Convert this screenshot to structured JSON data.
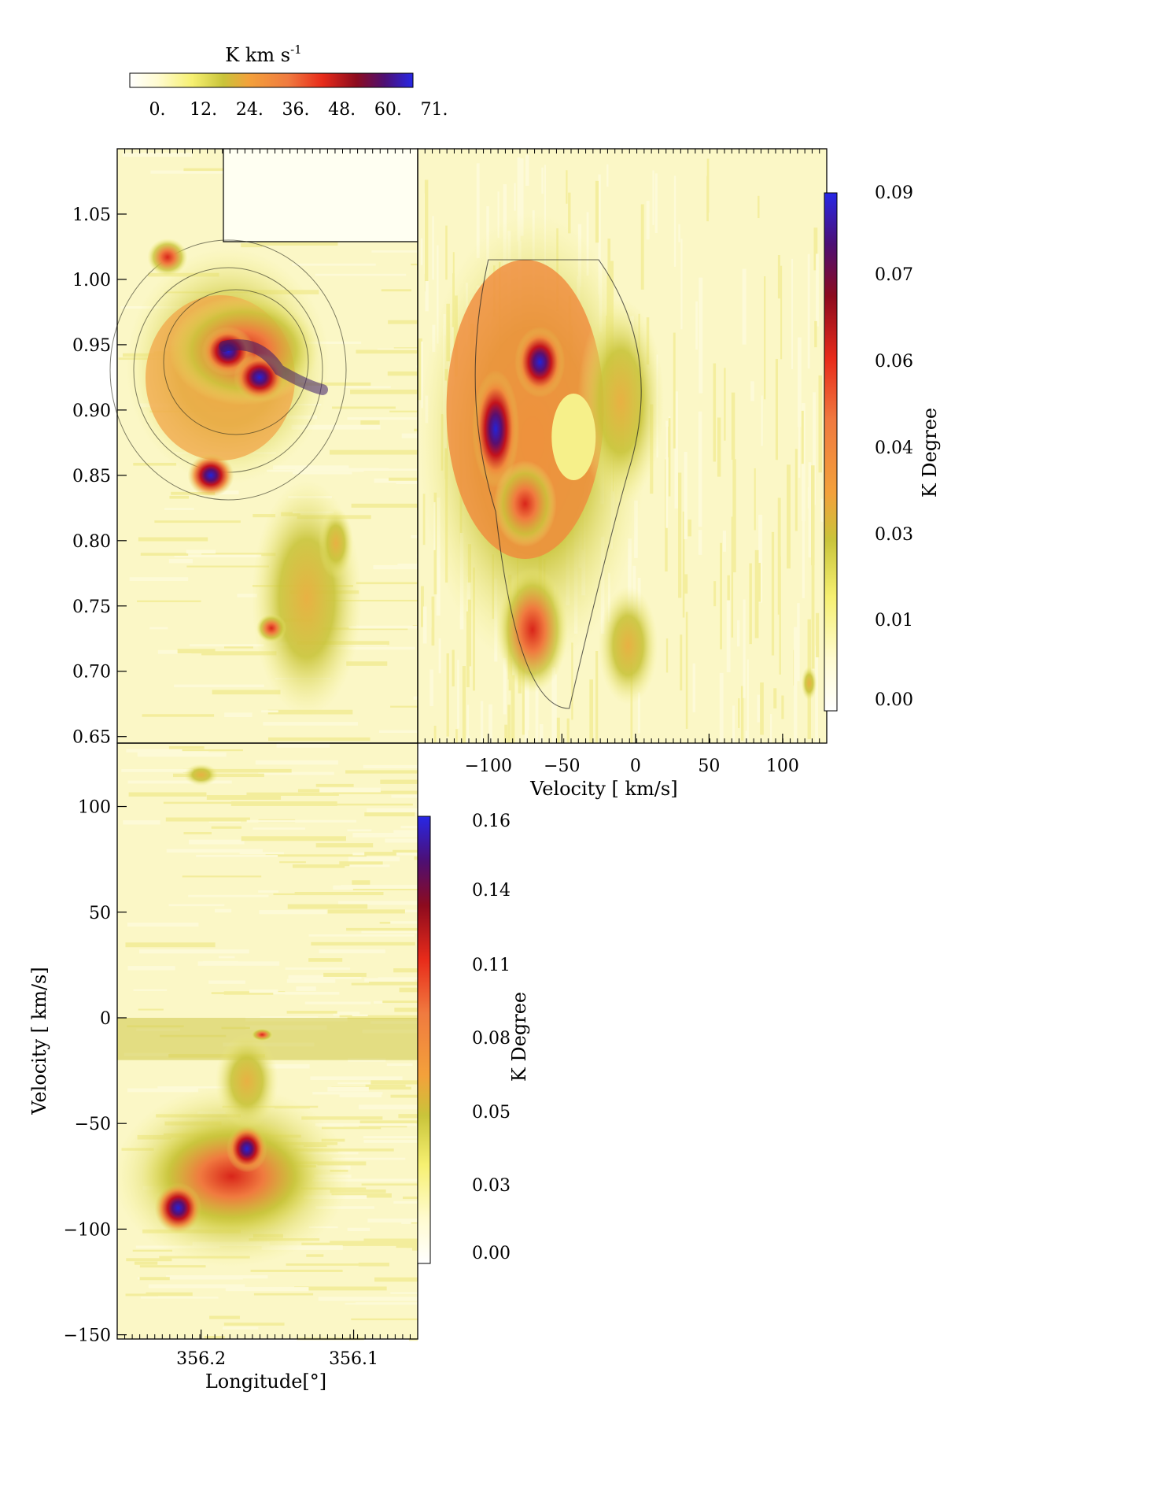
{
  "chart_data": [
    {
      "type": "heatmap",
      "panel": "integrated-intensity map",
      "colorbar": {
        "title": "K km s",
        "title_superscript": "-1",
        "ticks": [
          "0.",
          "12.",
          "24.",
          "36.",
          "48.",
          "60.",
          "71."
        ],
        "range": [
          0,
          71
        ]
      },
      "xlabel": "",
      "ylabel": "",
      "yticks": [
        1.05,
        1.0,
        0.95,
        0.9,
        0.85,
        0.8,
        0.75,
        0.7,
        0.65
      ],
      "yticklabels": [
        "1.05",
        "1.00",
        "0.95",
        "0.90",
        "0.85",
        "0.80",
        "0.75",
        "0.70",
        "0.65"
      ],
      "ylim": [
        0.645,
        1.1
      ],
      "peaks": [
        {
          "y": 1.017,
          "value": 55
        },
        {
          "y": 0.945,
          "value": 71
        },
        {
          "y": 0.925,
          "value": 68
        },
        {
          "y": 0.85,
          "value": 62
        },
        {
          "y": 0.733,
          "value": 44
        }
      ]
    },
    {
      "type": "heatmap",
      "panel": "latitude-velocity diagram",
      "xlabel": "Velocity [ km/s]",
      "xticks": [
        -100,
        -50,
        0,
        50,
        100
      ],
      "xticklabels": [
        "−100",
        "−50",
        "0",
        "50",
        "100"
      ],
      "xlim": [
        -148,
        130
      ],
      "colorbar": {
        "title": "K Degree",
        "ticks": [
          "0.09",
          "0.07",
          "0.06",
          "0.04",
          "0.03",
          "0.01",
          "0.00"
        ],
        "range": [
          0,
          0.09
        ]
      },
      "peaks": [
        {
          "velocity": -95,
          "value": 0.09
        },
        {
          "velocity": -65,
          "value": 0.085
        },
        {
          "velocity": -75,
          "value": 0.06
        },
        {
          "velocity": 118,
          "value": 0.035
        }
      ]
    },
    {
      "type": "heatmap",
      "panel": "longitude-velocity diagram",
      "xlabel": "Longitude[°]",
      "ylabel": "Velocity [ km/s]",
      "xticks": [
        356.2,
        356.1
      ],
      "xticklabels": [
        "356.2",
        "356.1"
      ],
      "yticks": [
        100,
        50,
        0,
        -50,
        -100,
        -150
      ],
      "yticklabels": [
        "100",
        "50",
        "0",
        "−50",
        "−100",
        "−150"
      ],
      "ylim": [
        -152,
        130
      ],
      "colorbar": {
        "title": "K Degree",
        "ticks": [
          "0.16",
          "0.14",
          "0.11",
          "0.08",
          "0.05",
          "0.03",
          "0.00"
        ],
        "range": [
          0,
          0.16
        ]
      },
      "peaks": [
        {
          "longitude": 356.17,
          "velocity": -62,
          "value": 0.16
        },
        {
          "longitude": 356.215,
          "velocity": -90,
          "value": 0.15
        },
        {
          "longitude": 356.16,
          "velocity": -8,
          "value": 0.06
        }
      ]
    }
  ]
}
